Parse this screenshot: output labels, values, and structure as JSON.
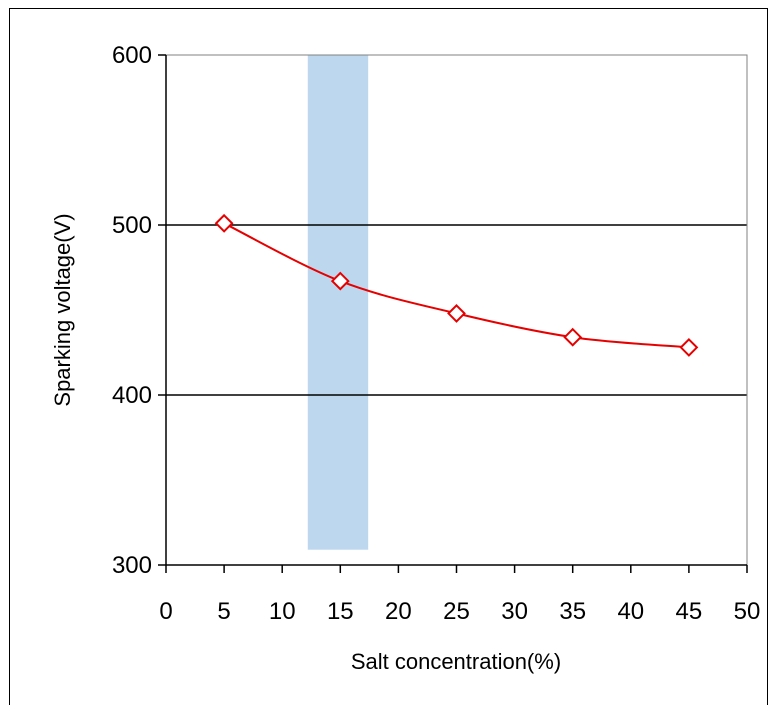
{
  "chart_data": {
    "type": "line",
    "title": "",
    "xlabel": "Salt concentration(%)",
    "ylabel": "Sparking voltage(V)",
    "xlim": [
      0,
      50
    ],
    "ylim": [
      300,
      600
    ],
    "x_ticks": [
      0,
      5,
      10,
      15,
      20,
      25,
      30,
      35,
      40,
      45,
      50
    ],
    "y_ticks": [
      300,
      400,
      500,
      600
    ],
    "x_tick_labels": [
      "0",
      "5",
      "10",
      "15",
      "20",
      "25",
      "30",
      "35",
      "40",
      "45",
      "50"
    ],
    "y_tick_labels": [
      "300",
      "400",
      "500",
      "600"
    ],
    "grid": "horizontal major lines",
    "series": [
      {
        "x": [
          5,
          15,
          25,
          35,
          45
        ],
        "values": [
          501,
          467,
          448,
          434,
          428
        ],
        "color": "#e60000",
        "marker": "open-diamond"
      }
    ],
    "highlight_band": {
      "x_range": [
        12.2,
        17.4
      ],
      "y_range": [
        309,
        600
      ],
      "color": "#bdd7ee"
    }
  }
}
